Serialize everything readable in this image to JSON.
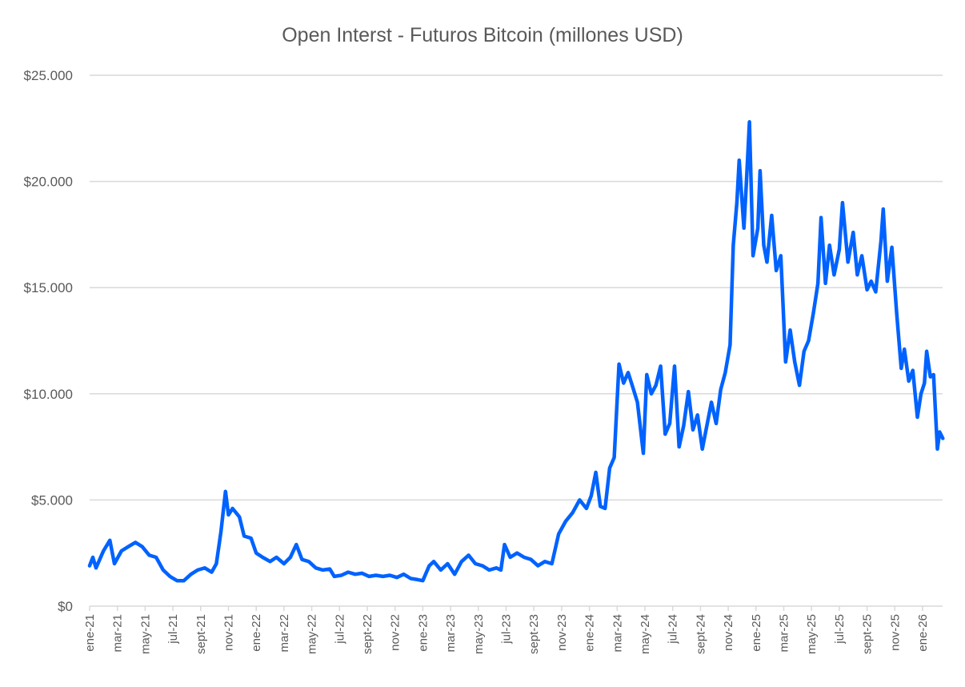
{
  "chart_data": {
    "type": "line",
    "title": "Open Interst - Futuros Bitcoin (millones USD)",
    "xlabel": "",
    "ylabel": "",
    "ylim": [
      0,
      25000
    ],
    "y_ticks": [
      "$0",
      "$5.000",
      "$10.000",
      "$15.000",
      "$20.000",
      "$25.000"
    ],
    "y_tick_values": [
      0,
      5000,
      10000,
      15000,
      20000,
      25000
    ],
    "x_range": [
      "2021-01-01",
      "2026-02-15"
    ],
    "x_ticks": [
      "ene-21",
      "mar-21",
      "may-21",
      "jul-21",
      "sept-21",
      "nov-21",
      "ene-22",
      "mar-22",
      "may-22",
      "jul-22",
      "sept-22",
      "nov-22",
      "ene-23",
      "mar-23",
      "may-23",
      "jul-23",
      "sept-23",
      "nov-23",
      "ene-24",
      "mar-24",
      "may-24",
      "jul-24",
      "sept-24",
      "nov-24",
      "ene-25",
      "mar-25",
      "may-25",
      "jul-25",
      "sept-25",
      "nov-25",
      "ene-26"
    ],
    "grid": "horizontal",
    "legend": "none",
    "series_color": "#0062ff",
    "series": [
      {
        "points": [
          [
            "2021-01-01",
            1900
          ],
          [
            "2021-01-08",
            2300
          ],
          [
            "2021-01-15",
            1800
          ],
          [
            "2021-02-01",
            2600
          ],
          [
            "2021-02-15",
            3100
          ],
          [
            "2021-02-25",
            2000
          ],
          [
            "2021-03-10",
            2600
          ],
          [
            "2021-03-25",
            2800
          ],
          [
            "2021-04-10",
            3000
          ],
          [
            "2021-04-25",
            2800
          ],
          [
            "2021-05-10",
            2400
          ],
          [
            "2021-05-25",
            2300
          ],
          [
            "2021-06-10",
            1700
          ],
          [
            "2021-06-25",
            1400
          ],
          [
            "2021-07-10",
            1200
          ],
          [
            "2021-07-25",
            1200
          ],
          [
            "2021-08-10",
            1500
          ],
          [
            "2021-08-25",
            1700
          ],
          [
            "2021-09-10",
            1800
          ],
          [
            "2021-09-25",
            1600
          ],
          [
            "2021-10-05",
            2000
          ],
          [
            "2021-10-15",
            3500
          ],
          [
            "2021-10-25",
            5400
          ],
          [
            "2021-11-01",
            4300
          ],
          [
            "2021-11-10",
            4600
          ],
          [
            "2021-11-25",
            4200
          ],
          [
            "2021-12-05",
            3300
          ],
          [
            "2021-12-20",
            3200
          ],
          [
            "2022-01-01",
            2500
          ],
          [
            "2022-01-15",
            2300
          ],
          [
            "2022-02-01",
            2100
          ],
          [
            "2022-02-15",
            2300
          ],
          [
            "2022-03-01",
            2000
          ],
          [
            "2022-03-15",
            2300
          ],
          [
            "2022-03-28",
            2900
          ],
          [
            "2022-04-10",
            2200
          ],
          [
            "2022-04-25",
            2100
          ],
          [
            "2022-05-10",
            1800
          ],
          [
            "2022-05-25",
            1700
          ],
          [
            "2022-06-10",
            1750
          ],
          [
            "2022-06-20",
            1400
          ],
          [
            "2022-07-05",
            1450
          ],
          [
            "2022-07-20",
            1600
          ],
          [
            "2022-08-05",
            1500
          ],
          [
            "2022-08-20",
            1550
          ],
          [
            "2022-09-05",
            1400
          ],
          [
            "2022-09-20",
            1450
          ],
          [
            "2022-10-05",
            1400
          ],
          [
            "2022-10-20",
            1450
          ],
          [
            "2022-11-05",
            1350
          ],
          [
            "2022-11-20",
            1500
          ],
          [
            "2022-12-05",
            1300
          ],
          [
            "2022-12-20",
            1250
          ],
          [
            "2023-01-01",
            1200
          ],
          [
            "2023-01-15",
            1900
          ],
          [
            "2023-01-25",
            2100
          ],
          [
            "2023-02-10",
            1700
          ],
          [
            "2023-02-25",
            2000
          ],
          [
            "2023-03-10",
            1500
          ],
          [
            "2023-03-25",
            2100
          ],
          [
            "2023-04-10",
            2400
          ],
          [
            "2023-04-25",
            2000
          ],
          [
            "2023-05-10",
            1900
          ],
          [
            "2023-05-25",
            1700
          ],
          [
            "2023-06-10",
            1800
          ],
          [
            "2023-06-20",
            1700
          ],
          [
            "2023-06-28",
            2900
          ],
          [
            "2023-07-10",
            2300
          ],
          [
            "2023-07-25",
            2500
          ],
          [
            "2023-08-10",
            2300
          ],
          [
            "2023-08-25",
            2200
          ],
          [
            "2023-09-10",
            1900
          ],
          [
            "2023-09-25",
            2100
          ],
          [
            "2023-10-10",
            2000
          ],
          [
            "2023-10-25",
            3400
          ],
          [
            "2023-11-10",
            4000
          ],
          [
            "2023-11-25",
            4400
          ],
          [
            "2023-12-10",
            5000
          ],
          [
            "2023-12-25",
            4600
          ],
          [
            "2024-01-05",
            5200
          ],
          [
            "2024-01-15",
            6300
          ],
          [
            "2024-01-25",
            4700
          ],
          [
            "2024-02-05",
            4600
          ],
          [
            "2024-02-15",
            6500
          ],
          [
            "2024-02-25",
            7000
          ],
          [
            "2024-03-05",
            11400
          ],
          [
            "2024-03-15",
            10500
          ],
          [
            "2024-03-25",
            11000
          ],
          [
            "2024-04-05",
            10300
          ],
          [
            "2024-04-15",
            9600
          ],
          [
            "2024-04-28",
            7200
          ],
          [
            "2024-05-05",
            10900
          ],
          [
            "2024-05-15",
            10000
          ],
          [
            "2024-05-25",
            10400
          ],
          [
            "2024-06-05",
            11300
          ],
          [
            "2024-06-15",
            8100
          ],
          [
            "2024-06-25",
            8600
          ],
          [
            "2024-07-05",
            11300
          ],
          [
            "2024-07-15",
            7500
          ],
          [
            "2024-07-25",
            8500
          ],
          [
            "2024-08-05",
            10100
          ],
          [
            "2024-08-15",
            8300
          ],
          [
            "2024-08-25",
            9000
          ],
          [
            "2024-09-05",
            7400
          ],
          [
            "2024-09-15",
            8500
          ],
          [
            "2024-09-25",
            9600
          ],
          [
            "2024-10-05",
            8600
          ],
          [
            "2024-10-15",
            10200
          ],
          [
            "2024-10-25",
            11000
          ],
          [
            "2024-11-05",
            12300
          ],
          [
            "2024-11-12",
            17000
          ],
          [
            "2024-11-20",
            19000
          ],
          [
            "2024-11-25",
            21000
          ],
          [
            "2024-12-05",
            17800
          ],
          [
            "2024-12-10",
            19800
          ],
          [
            "2024-12-17",
            22800
          ],
          [
            "2024-12-25",
            16500
          ],
          [
            "2025-01-05",
            17800
          ],
          [
            "2025-01-10",
            20500
          ],
          [
            "2025-01-18",
            17000
          ],
          [
            "2025-01-25",
            16200
          ],
          [
            "2025-02-05",
            18400
          ],
          [
            "2025-02-15",
            15800
          ],
          [
            "2025-02-25",
            16500
          ],
          [
            "2025-03-05",
            11500
          ],
          [
            "2025-03-15",
            13000
          ],
          [
            "2025-03-25",
            11500
          ],
          [
            "2025-04-05",
            10400
          ],
          [
            "2025-04-15",
            12000
          ],
          [
            "2025-04-25",
            12500
          ],
          [
            "2025-05-05",
            13800
          ],
          [
            "2025-05-15",
            15200
          ],
          [
            "2025-05-22",
            18300
          ],
          [
            "2025-06-01",
            15200
          ],
          [
            "2025-06-10",
            17000
          ],
          [
            "2025-06-20",
            15600
          ],
          [
            "2025-07-01",
            16800
          ],
          [
            "2025-07-08",
            19000
          ],
          [
            "2025-07-20",
            16200
          ],
          [
            "2025-08-01",
            17600
          ],
          [
            "2025-08-10",
            15600
          ],
          [
            "2025-08-20",
            16500
          ],
          [
            "2025-09-01",
            14900
          ],
          [
            "2025-09-10",
            15300
          ],
          [
            "2025-09-20",
            14800
          ],
          [
            "2025-10-01",
            17200
          ],
          [
            "2025-10-06",
            18700
          ],
          [
            "2025-10-15",
            15300
          ],
          [
            "2025-10-25",
            16900
          ],
          [
            "2025-11-05",
            13800
          ],
          [
            "2025-11-15",
            11200
          ],
          [
            "2025-11-22",
            12100
          ],
          [
            "2025-12-01",
            10600
          ],
          [
            "2025-12-10",
            11100
          ],
          [
            "2025-12-20",
            8900
          ],
          [
            "2025-12-28",
            10000
          ],
          [
            "2026-01-05",
            10500
          ],
          [
            "2026-01-10",
            12000
          ],
          [
            "2026-01-18",
            10800
          ],
          [
            "2026-01-25",
            10900
          ],
          [
            "2026-02-03",
            7400
          ],
          [
            "2026-02-08",
            8200
          ],
          [
            "2026-02-15",
            7900
          ]
        ]
      }
    ]
  }
}
